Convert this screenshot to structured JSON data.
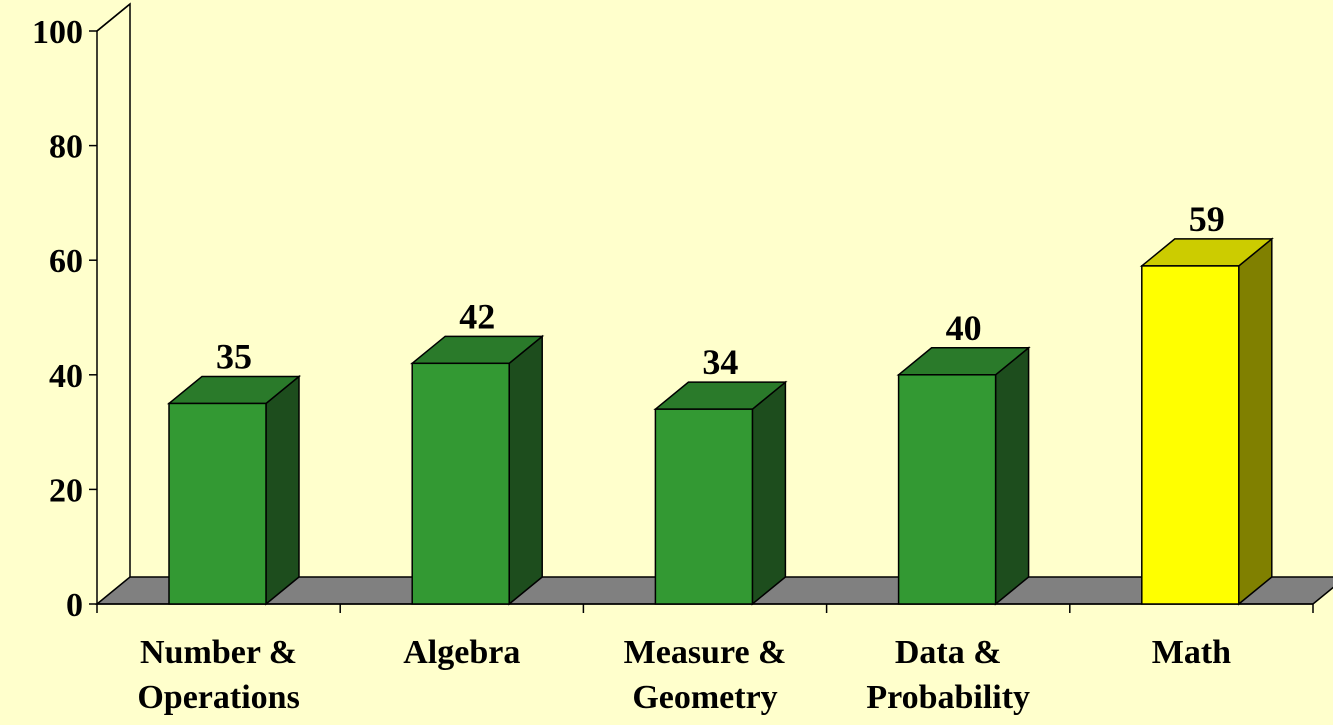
{
  "chart_data": {
    "type": "bar",
    "title": "",
    "xlabel": "",
    "ylabel": "",
    "ylim": [
      0,
      100
    ],
    "yticks": [
      0,
      20,
      40,
      60,
      80,
      100
    ],
    "categories": [
      [
        "Number &",
        "Operations"
      ],
      [
        "Algebra"
      ],
      [
        "Measure &",
        "Geometry"
      ],
      [
        "Data &",
        "Probability"
      ],
      [
        "Math"
      ]
    ],
    "values": [
      35,
      42,
      34,
      40,
      59
    ],
    "bar_colors": [
      "#339933",
      "#339933",
      "#339933",
      "#339933",
      "#FFFF00"
    ],
    "legend": "none",
    "grid": false,
    "style": "3d-column"
  },
  "colors": {
    "background": "#FFFFCC",
    "floor": "#808080",
    "green_front": "#339933",
    "green_top": "#2A7A2A",
    "green_side": "#1D4D1D",
    "yellow_front": "#FFFF00",
    "yellow_top": "#CCCC00",
    "yellow_side": "#808000"
  }
}
